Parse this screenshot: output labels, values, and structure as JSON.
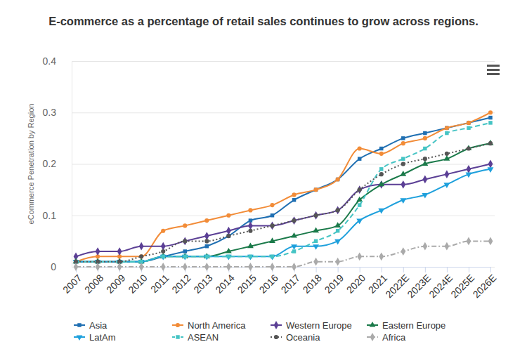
{
  "chart_data": {
    "type": "line",
    "title": "E-commerce as a percentage of retail sales continues to grow across regions.",
    "y_label": "eCommerce Penetration by Region",
    "categories": [
      "2007",
      "2008",
      "2009",
      "2010",
      "2011",
      "2012",
      "2013",
      "2014",
      "2015",
      "2016",
      "2017",
      "2018",
      "2019",
      "2020",
      "2021",
      "2022E",
      "2023E",
      "2024E",
      "2025E",
      "2026E"
    ],
    "ylim": [
      0,
      0.4
    ],
    "yticks": [
      0,
      0.1,
      0.2,
      0.3,
      0.4
    ],
    "grid": true,
    "legend": "bottom",
    "series": [
      {
        "name": "Asia",
        "color": "#1f6fb2",
        "marker": "square",
        "line_style": "solid",
        "values": [
          0.01,
          0.01,
          0.01,
          0.01,
          0.02,
          0.03,
          0.04,
          0.06,
          0.09,
          0.1,
          0.13,
          0.15,
          0.17,
          0.21,
          0.23,
          0.25,
          0.26,
          0.27,
          0.28,
          0.29
        ]
      },
      {
        "name": "North America",
        "color": "#f28c38",
        "marker": "circle",
        "line_style": "solid",
        "values": [
          0.01,
          0.02,
          0.02,
          0.02,
          0.07,
          0.08,
          0.09,
          0.1,
          0.11,
          0.12,
          0.14,
          0.15,
          0.17,
          0.23,
          0.22,
          0.24,
          0.25,
          0.27,
          0.28,
          0.3
        ]
      },
      {
        "name": "Western Europe",
        "color": "#5b3f95",
        "marker": "diamond",
        "line_style": "solid",
        "values": [
          0.02,
          0.03,
          0.03,
          0.04,
          0.04,
          0.05,
          0.06,
          0.07,
          0.08,
          0.08,
          0.09,
          0.1,
          0.11,
          0.15,
          0.16,
          0.16,
          0.17,
          0.18,
          0.19,
          0.2
        ]
      },
      {
        "name": "Eastern Europe",
        "color": "#1b7a4a",
        "marker": "triangle-up",
        "line_style": "solid",
        "values": [
          0.01,
          0.01,
          0.01,
          0.01,
          0.02,
          0.02,
          0.02,
          0.03,
          0.04,
          0.05,
          0.06,
          0.07,
          0.08,
          0.13,
          0.16,
          0.18,
          0.2,
          0.21,
          0.23,
          0.24
        ]
      },
      {
        "name": "LatAm",
        "color": "#1ea0dc",
        "marker": "triangle-down",
        "line_style": "solid",
        "values": [
          0.01,
          0.01,
          0.01,
          0.01,
          0.02,
          0.02,
          0.02,
          0.02,
          0.02,
          0.02,
          0.04,
          0.04,
          0.05,
          0.09,
          0.11,
          0.13,
          0.14,
          0.16,
          0.18,
          0.19
        ]
      },
      {
        "name": "ASEAN",
        "color": "#45c4c4",
        "marker": "square",
        "line_style": "dashed",
        "values": [
          0.01,
          0.01,
          0.01,
          0.01,
          0.02,
          0.02,
          0.02,
          0.02,
          0.02,
          0.02,
          0.03,
          0.05,
          0.07,
          0.12,
          0.19,
          0.21,
          0.23,
          0.26,
          0.27,
          0.28
        ]
      },
      {
        "name": "Oceania",
        "color": "#555555",
        "marker": "circle",
        "line_style": "dotted",
        "values": [
          0.01,
          0.01,
          0.01,
          0.02,
          0.03,
          0.05,
          0.05,
          0.06,
          0.07,
          0.08,
          0.09,
          0.1,
          0.11,
          0.15,
          0.18,
          0.2,
          0.21,
          0.22,
          0.23,
          0.24
        ]
      },
      {
        "name": "Africa",
        "color": "#aaaaaa",
        "marker": "diamond",
        "line_style": "dashdot",
        "values": [
          0,
          0,
          0,
          0,
          0,
          0,
          0,
          0,
          0,
          0,
          0,
          0.01,
          0.01,
          0.02,
          0.02,
          0.03,
          0.04,
          0.04,
          0.05,
          0.05
        ]
      }
    ]
  }
}
